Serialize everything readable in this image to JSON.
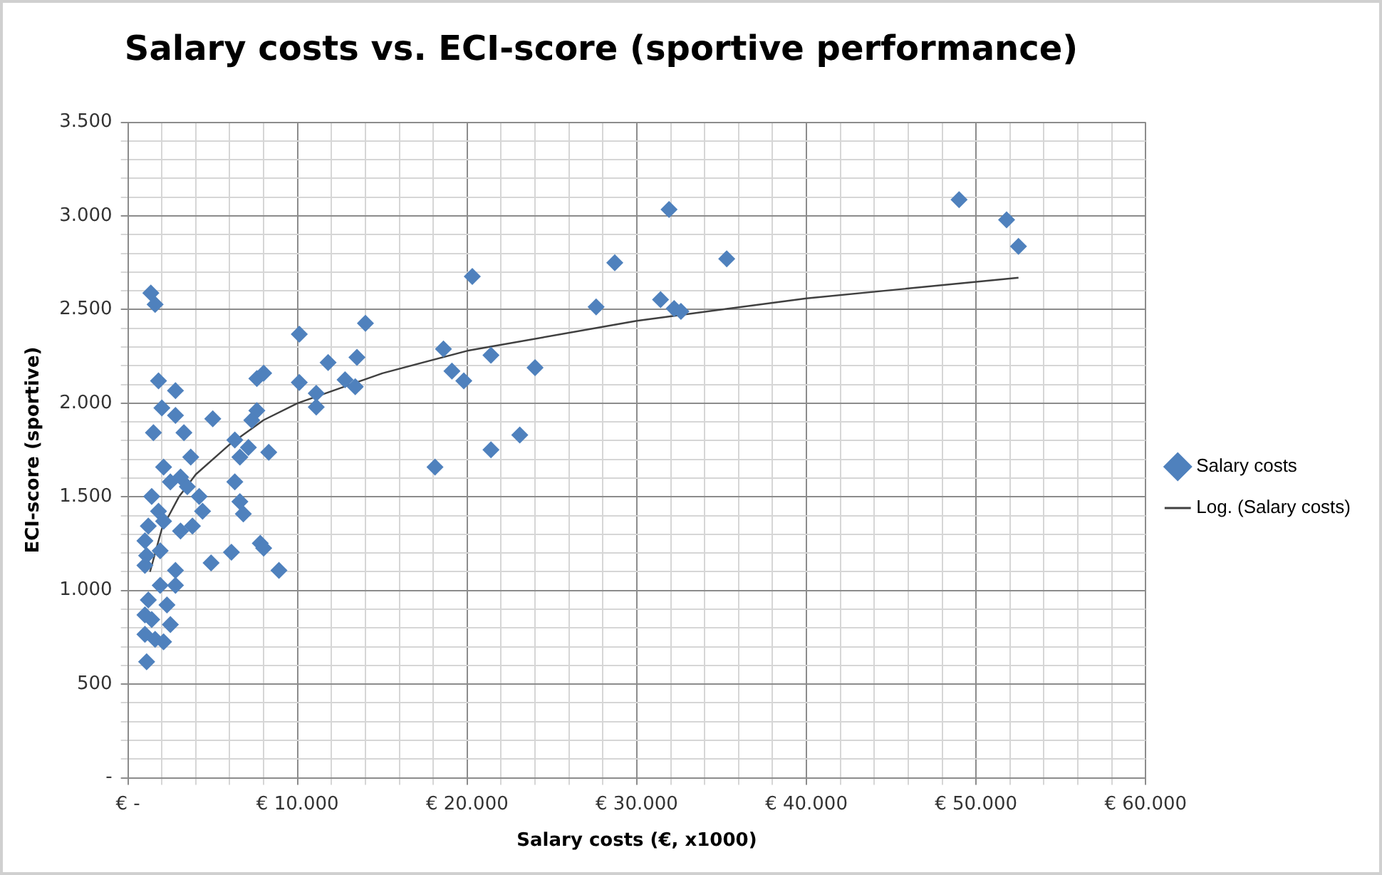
{
  "chart_data": {
    "type": "scatter",
    "title": "Salary costs vs. ECI-score (sportive performance)",
    "xlabel": "Salary costs (€, x1000)",
    "ylabel": "ECI-score (sportive)",
    "xlim": [
      0,
      60000
    ],
    "ylim": [
      0,
      3500
    ],
    "xticks": [
      {
        "value": 0,
        "label": "€ -"
      },
      {
        "value": 2000,
        "label": null
      },
      {
        "value": 4000,
        "label": null
      },
      {
        "value": 6000,
        "label": null
      },
      {
        "value": 8000,
        "label": null
      },
      {
        "value": 10000,
        "label": "€ 10.000"
      },
      {
        "value": 12000,
        "label": null
      },
      {
        "value": 14000,
        "label": null
      },
      {
        "value": 16000,
        "label": null
      },
      {
        "value": 18000,
        "label": null
      },
      {
        "value": 20000,
        "label": "€ 20.000"
      },
      {
        "value": 22000,
        "label": null
      },
      {
        "value": 24000,
        "label": null
      },
      {
        "value": 26000,
        "label": null
      },
      {
        "value": 28000,
        "label": null
      },
      {
        "value": 30000,
        "label": "€ 30.000"
      },
      {
        "value": 32000,
        "label": null
      },
      {
        "value": 34000,
        "label": null
      },
      {
        "value": 36000,
        "label": null
      },
      {
        "value": 38000,
        "label": null
      },
      {
        "value": 40000,
        "label": "€ 40.000"
      },
      {
        "value": 42000,
        "label": null
      },
      {
        "value": 44000,
        "label": null
      },
      {
        "value": 46000,
        "label": null
      },
      {
        "value": 48000,
        "label": null
      },
      {
        "value": 50000,
        "label": "€ 50.000"
      },
      {
        "value": 52000,
        "label": null
      },
      {
        "value": 54000,
        "label": null
      },
      {
        "value": 56000,
        "label": null
      },
      {
        "value": 58000,
        "label": null
      },
      {
        "value": 60000,
        "label": "€ 60.000"
      }
    ],
    "yticks": [
      {
        "value": 0,
        "label": "-"
      },
      {
        "value": 100,
        "label": null
      },
      {
        "value": 200,
        "label": null
      },
      {
        "value": 300,
        "label": null
      },
      {
        "value": 400,
        "label": null
      },
      500,
      {
        "value": 600,
        "label": null
      },
      {
        "value": 700,
        "label": null
      },
      {
        "value": 800,
        "label": null
      },
      {
        "value": 900,
        "label": null
      },
      {
        "value": 1000,
        "label": "1.000"
      },
      {
        "value": 1100,
        "label": null
      },
      {
        "value": 1200,
        "label": null
      },
      {
        "value": 1300,
        "label": null
      },
      {
        "value": 1400,
        "label": null
      },
      {
        "value": 1500,
        "label": "1.500"
      },
      {
        "value": 1600,
        "label": null
      },
      {
        "value": 1700,
        "label": null
      },
      {
        "value": 1800,
        "label": null
      },
      {
        "value": 1900,
        "label": null
      },
      {
        "value": 2000,
        "label": "2.000"
      },
      {
        "value": 2100,
        "label": null
      },
      {
        "value": 2200,
        "label": null
      },
      {
        "value": 2300,
        "label": null
      },
      {
        "value": 2400,
        "label": null
      },
      {
        "value": 2500,
        "label": "2.500"
      },
      {
        "value": 2600,
        "label": null
      },
      {
        "value": 2700,
        "label": null
      },
      {
        "value": 2800,
        "label": null
      },
      {
        "value": 2900,
        "label": null
      },
      {
        "value": 3000,
        "label": "3.000"
      },
      {
        "value": 3100,
        "label": null
      },
      {
        "value": 3200,
        "label": null
      },
      {
        "value": 3300,
        "label": null
      },
      {
        "value": 3400,
        "label": null
      },
      {
        "value": 3500,
        "label": "3.500"
      }
    ],
    "grid": true,
    "legend": "right",
    "marker": "diamond",
    "series": [
      {
        "name": "Salary costs",
        "color": "#4f81bd",
        "x": [
          49000,
          51800,
          52500,
          31900,
          28700,
          35300,
          27600,
          31400,
          32200,
          32600,
          20300,
          14000,
          11800,
          13500,
          12800,
          13400,
          11100,
          11100,
          18600,
          19100,
          19800,
          21400,
          24000,
          18100,
          21400,
          23100,
          1350,
          1600,
          10100,
          7600,
          8000,
          10100,
          1800,
          2800,
          2000,
          2800,
          3300,
          1500,
          5000,
          3700,
          7600,
          7300,
          6300,
          6600,
          7100,
          8300,
          6300,
          6600,
          6800,
          7800,
          8000,
          6100,
          4900,
          8900,
          2500,
          3500,
          4200,
          4400,
          3800,
          3100,
          1400,
          1800,
          2100,
          1200,
          1000,
          1100,
          1000,
          1900,
          2800,
          1900,
          1200,
          1000,
          1400,
          1000,
          1600,
          2100,
          1100,
          2500,
          2300,
          2800,
          2100,
          3100
        ],
        "values": [
          3087,
          2979,
          2837,
          3034,
          2750,
          2771,
          2514,
          2553,
          2506,
          2490,
          2677,
          2427,
          2217,
          2245,
          2125,
          2088,
          2053,
          1980,
          2290,
          2172,
          2119,
          2256,
          2190,
          1659,
          1751,
          1830,
          2588,
          2527,
          2369,
          2132,
          2160,
          2111,
          2119,
          2067,
          1975,
          1935,
          1843,
          1843,
          1917,
          1712,
          1961,
          1909,
          1804,
          1712,
          1764,
          1738,
          1580,
          1475,
          1409,
          1252,
          1226,
          1204,
          1147,
          1107,
          1580,
          1554,
          1502,
          1423,
          1344,
          1318,
          1502,
          1423,
          1370,
          1344,
          1265,
          1186,
          1134,
          1212,
          1028,
          1028,
          950,
          870,
          845,
          766,
          739,
          726,
          620,
          818,
          923,
          1107,
          1659,
          1606
        ]
      },
      {
        "name": "Log. (Salary costs)",
        "type": "line",
        "color": "#404040",
        "marker": "none",
        "x": [
          1300,
          2000,
          3000,
          4000,
          6000,
          8000,
          10000,
          15000,
          20000,
          30000,
          40000,
          52500
        ],
        "values": [
          1100,
          1330,
          1500,
          1620,
          1780,
          1910,
          2000,
          2160,
          2280,
          2440,
          2560,
          2670
        ]
      }
    ]
  }
}
